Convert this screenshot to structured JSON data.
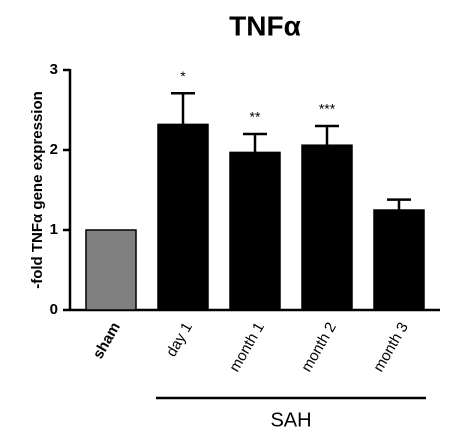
{
  "chart_data": {
    "type": "bar",
    "title": "TNFα",
    "y_label": "-fold TNFα gene expression",
    "categories": [
      "sham",
      "day 1",
      "month 1",
      "month 2",
      "month 3"
    ],
    "values": [
      1.0,
      2.32,
      1.97,
      2.06,
      1.25
    ],
    "errors": [
      null,
      0.39,
      0.23,
      0.24,
      0.13
    ],
    "colors": [
      "#808080",
      "#000000",
      "#000000",
      "#000000",
      "#000000"
    ],
    "annotations": [
      null,
      "*",
      "**",
      "***",
      null
    ],
    "groups": [
      {
        "label": "SAH",
        "categories": [
          "day 1",
          "month 1",
          "month 2",
          "month 3"
        ]
      }
    ],
    "ylim": [
      0,
      3
    ],
    "yticks": [
      0,
      1,
      2,
      3
    ],
    "grid": false
  }
}
